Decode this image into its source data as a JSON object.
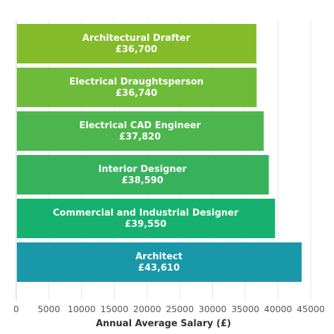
{
  "chart_data": {
    "type": "bar",
    "orientation": "horizontal",
    "categories": [
      "Architectural Drafter",
      "Electrical Draughtsperson",
      "Electrical CAD Engineer",
      "Interior Designer",
      "Commercial and Industrial Designer",
      "Architect"
    ],
    "values": [
      36700,
      36740,
      37820,
      38590,
      39550,
      43610
    ],
    "value_labels": [
      "£36,700",
      "£36,740",
      "£37,820",
      "£38,590",
      "£39,550",
      "£43,610"
    ],
    "bar_colors": [
      "#84bb2a",
      "#6ebb3a",
      "#4db54e",
      "#36b25c",
      "#16b06f",
      "#1898a8"
    ],
    "title": "",
    "xlabel": "Annual Average Salary (£)",
    "ylabel": "",
    "xlim": [
      0,
      45000
    ],
    "xticks": [
      0,
      5000,
      10000,
      15000,
      20000,
      25000,
      30000,
      35000,
      40000,
      45000
    ],
    "xtick_labels": [
      "0",
      "5000",
      "10000",
      "15000",
      "20000",
      "25000",
      "30000",
      "35000",
      "40000",
      "45000"
    ],
    "grid": "vertical"
  }
}
